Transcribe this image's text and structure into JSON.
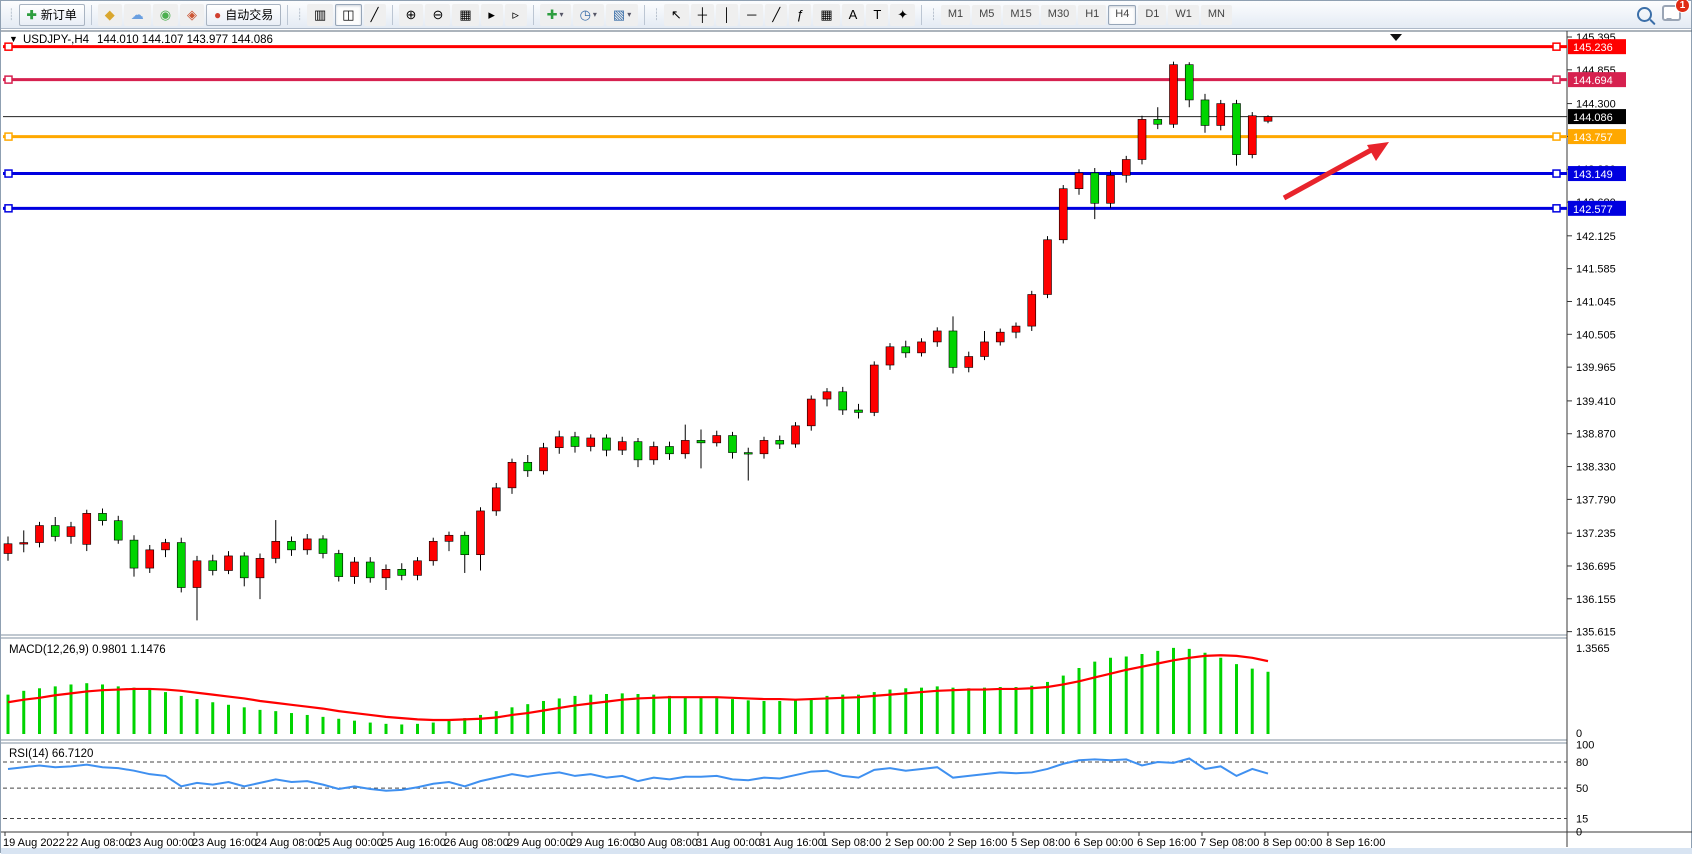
{
  "toolbar": {
    "new_order_label": "新订单",
    "autotrade_label": "自动交易",
    "account_icons": [
      {
        "name": "wallet-icon",
        "glyph": "◆",
        "color": "#d9a62e"
      },
      {
        "name": "community-icon",
        "glyph": "☁",
        "color": "#6a9fe0"
      },
      {
        "name": "signals-icon",
        "glyph": "◉",
        "color": "#4caf50"
      },
      {
        "name": "market-icon",
        "glyph": "◈",
        "color": "#cc5533"
      }
    ],
    "chart_type_buttons": [
      {
        "name": "bar-chart-button",
        "glyph": "▥",
        "press<!---->ed": false
      },
      {
        "name": "candlestick-button",
        "glyph": "◫",
        "pressed": true
      },
      {
        "name": "line-chart-button",
        "glyph": "╱",
        "pressed": false
      }
    ],
    "zoom_buttons": [
      {
        "name": "zoom-in-button",
        "glyph": "⊕"
      },
      {
        "name": "zoom-out-button",
        "glyph": "⊖"
      }
    ],
    "window_buttons": [
      {
        "name": "tile-windows-button",
        "glyph": "▦"
      },
      {
        "name": "autoscroll-button",
        "glyph": "▸"
      },
      {
        "name": "chart-shift-button",
        "glyph": "▹"
      }
    ],
    "dropdown_buttons": [
      {
        "name": "indicators-button",
        "glyph": "✚",
        "color": "#2e9e3f"
      },
      {
        "name": "periods-button",
        "glyph": "◷",
        "color": "#3a6ea8"
      },
      {
        "name": "templates-button",
        "glyph": "▧",
        "color": "#3a6ea8"
      }
    ],
    "draw_buttons": [
      {
        "name": "cursor-button",
        "glyph": "↖"
      },
      {
        "name": "crosshair-button",
        "glyph": "┼"
      },
      {
        "name": "vertical-line-button",
        "glyph": "│"
      },
      {
        "name": "horizontal-line-button",
        "glyph": "─"
      },
      {
        "name": "trendline-button",
        "glyph": "╱"
      },
      {
        "name": "fibonacci-button",
        "glyph": "ƒ"
      },
      {
        "name": "grid-button",
        "glyph": "▦"
      },
      {
        "name": "text-button",
        "glyph": "A"
      },
      {
        "name": "label-button",
        "glyph": "T"
      },
      {
        "name": "shapes-button",
        "glyph": "✦"
      }
    ],
    "timeframes": [
      "M1",
      "M5",
      "M15",
      "M30",
      "H1",
      "H4",
      "D1",
      "W1",
      "MN"
    ],
    "active_timeframe": "H4",
    "chat_badge": "1"
  },
  "chart": {
    "marker": "▼",
    "symbol_title": "USDJPY-,H4",
    "ohlc_display": "144.010 144.107 143.977 144.086"
  },
  "indicators": {
    "macd_label": "MACD(12,26,9) 0.9801 1.1476",
    "macd_scale_max": "1.3565",
    "macd_scale_min": "0",
    "rsi_label": "RSI(14) 66.7120",
    "rsi_level_labels": [
      "100",
      "80",
      "50",
      "15",
      "0"
    ]
  },
  "price_axis": {
    "ticks": [
      "145.395",
      "144.855",
      "144.300",
      "143.760",
      "143.220",
      "142.680",
      "142.125",
      "141.585",
      "141.045",
      "140.505",
      "139.965",
      "139.410",
      "138.870",
      "138.330",
      "137.790",
      "137.235",
      "136.695",
      "136.155",
      "135.615"
    ]
  },
  "time_axis": {
    "labels": [
      "19 Aug 2022",
      "22 Aug 08:00",
      "23 Aug 00:00",
      "23 Aug 16:00",
      "24 Aug 08:00",
      "25 Aug 00:00",
      "25 Aug 16:00",
      "26 Aug 08:00",
      "29 Aug 00:00",
      "29 Aug 16:00",
      "30 Aug 08:00",
      "31 Aug 00:00",
      "31 Aug 16:00",
      "1 Sep 08:00",
      "2 Sep 00:00",
      "2 Sep 16:00",
      "5 Sep 08:00",
      "6 Sep 00:00",
      "6 Sep 16:00",
      "7 Sep 08:00",
      "8 Sep 00:00",
      "8 Sep 16:00"
    ]
  },
  "chart_data": {
    "type": "candlestick",
    "symbol": "USDJPY",
    "period": "H4",
    "up_color": "#fe0000",
    "down_color": "#00d400",
    "current": {
      "open": 144.01,
      "high": 144.107,
      "low": 143.977,
      "close": 144.086
    },
    "price_lines": [
      {
        "price": 145.236,
        "label": "145.236",
        "color": "#ff0000"
      },
      {
        "price": 144.694,
        "label": "144.694",
        "color": "#d6214f"
      },
      {
        "price": 143.757,
        "label": "143.757",
        "color": "#ffa800"
      },
      {
        "price": 143.149,
        "label": "143.149",
        "color": "#0000e0"
      },
      {
        "price": 142.577,
        "label": "142.577",
        "color": "#0000e0"
      }
    ],
    "current_price_line": {
      "price": 144.086,
      "label": "144.086",
      "color": "#000000"
    },
    "annotation_arrow": {
      "color": "#e8242c"
    },
    "candles": [
      [
        136.9,
        137.18,
        136.78,
        137.06
      ],
      [
        137.06,
        137.28,
        136.92,
        137.08
      ],
      [
        137.08,
        137.42,
        137.0,
        137.36
      ],
      [
        137.36,
        137.5,
        137.1,
        137.18
      ],
      [
        137.18,
        137.42,
        137.06,
        137.34
      ],
      [
        137.05,
        137.62,
        136.94,
        137.56
      ],
      [
        137.56,
        137.64,
        137.36,
        137.44
      ],
      [
        137.44,
        137.52,
        137.06,
        137.12
      ],
      [
        137.12,
        137.2,
        136.52,
        136.66
      ],
      [
        136.66,
        137.04,
        136.58,
        136.96
      ],
      [
        136.96,
        137.14,
        136.84,
        137.08
      ],
      [
        137.08,
        137.16,
        136.26,
        136.34
      ],
      [
        136.34,
        136.86,
        135.8,
        136.78
      ],
      [
        136.78,
        136.88,
        136.54,
        136.62
      ],
      [
        136.62,
        136.94,
        136.56,
        136.86
      ],
      [
        136.86,
        136.92,
        136.36,
        136.5
      ],
      [
        136.5,
        136.9,
        136.15,
        136.82
      ],
      [
        136.82,
        137.45,
        136.74,
        137.1
      ],
      [
        137.1,
        137.18,
        136.86,
        136.96
      ],
      [
        136.96,
        137.22,
        136.88,
        137.14
      ],
      [
        137.14,
        137.2,
        136.82,
        136.9
      ],
      [
        136.9,
        136.96,
        136.44,
        136.52
      ],
      [
        136.52,
        136.84,
        136.4,
        136.76
      ],
      [
        136.76,
        136.84,
        136.42,
        136.5
      ],
      [
        136.5,
        136.72,
        136.3,
        136.64
      ],
      [
        136.64,
        136.74,
        136.46,
        136.54
      ],
      [
        136.54,
        136.84,
        136.46,
        136.78
      ],
      [
        136.78,
        137.16,
        136.7,
        137.1
      ],
      [
        137.1,
        137.26,
        136.94,
        137.2
      ],
      [
        137.2,
        137.26,
        136.58,
        136.88
      ],
      [
        136.88,
        137.66,
        136.62,
        137.6
      ],
      [
        137.6,
        138.06,
        137.52,
        137.98
      ],
      [
        137.98,
        138.46,
        137.88,
        138.4
      ],
      [
        138.4,
        138.52,
        138.16,
        138.26
      ],
      [
        138.26,
        138.72,
        138.2,
        138.64
      ],
      [
        138.64,
        138.92,
        138.54,
        138.82
      ],
      [
        138.82,
        138.9,
        138.56,
        138.66
      ],
      [
        138.66,
        138.86,
        138.58,
        138.8
      ],
      [
        138.8,
        138.86,
        138.5,
        138.6
      ],
      [
        138.6,
        138.82,
        138.52,
        138.74
      ],
      [
        138.74,
        138.8,
        138.32,
        138.44
      ],
      [
        138.44,
        138.74,
        138.36,
        138.66
      ],
      [
        138.66,
        138.74,
        138.44,
        138.54
      ],
      [
        138.54,
        139.02,
        138.46,
        138.76
      ],
      [
        138.76,
        138.94,
        138.3,
        138.72
      ],
      [
        138.72,
        138.92,
        138.66,
        138.84
      ],
      [
        138.84,
        138.9,
        138.46,
        138.56
      ],
      [
        138.56,
        138.64,
        138.1,
        138.54
      ],
      [
        138.54,
        138.82,
        138.46,
        138.76
      ],
      [
        138.76,
        138.84,
        138.62,
        138.7
      ],
      [
        138.7,
        139.06,
        138.64,
        139.0
      ],
      [
        139.0,
        139.5,
        138.92,
        139.44
      ],
      [
        139.44,
        139.62,
        139.32,
        139.56
      ],
      [
        139.56,
        139.64,
        139.18,
        139.26
      ],
      [
        139.26,
        139.36,
        139.12,
        139.22
      ],
      [
        139.22,
        140.06,
        139.16,
        140.0
      ],
      [
        140.0,
        140.36,
        139.92,
        140.3
      ],
      [
        140.3,
        140.4,
        140.12,
        140.2
      ],
      [
        140.2,
        140.44,
        140.14,
        140.38
      ],
      [
        140.38,
        140.62,
        140.3,
        140.56
      ],
      [
        140.56,
        140.8,
        139.86,
        139.96
      ],
      [
        139.96,
        140.22,
        139.88,
        140.14
      ],
      [
        140.14,
        140.56,
        140.08,
        140.38
      ],
      [
        140.38,
        140.6,
        140.32,
        140.54
      ],
      [
        140.54,
        140.7,
        140.44,
        140.64
      ],
      [
        140.64,
        141.22,
        140.56,
        141.16
      ],
      [
        141.16,
        142.12,
        141.1,
        142.06
      ],
      [
        142.06,
        142.96,
        142.0,
        142.9
      ],
      [
        142.9,
        143.22,
        142.8,
        143.16
      ],
      [
        143.16,
        143.24,
        142.4,
        142.66
      ],
      [
        142.66,
        143.2,
        142.58,
        143.12
      ],
      [
        143.12,
        143.44,
        143.0,
        143.38
      ],
      [
        143.38,
        144.1,
        143.3,
        144.04
      ],
      [
        144.04,
        144.24,
        143.88,
        143.96
      ],
      [
        143.96,
        144.99,
        143.9,
        144.94
      ],
      [
        144.94,
        144.98,
        144.24,
        144.36
      ],
      [
        144.36,
        144.46,
        143.82,
        143.94
      ],
      [
        143.94,
        144.36,
        143.86,
        144.3
      ],
      [
        144.3,
        144.36,
        143.28,
        143.46
      ],
      [
        143.46,
        144.16,
        143.4,
        144.1
      ],
      [
        144.01,
        144.107,
        143.977,
        144.086
      ]
    ],
    "macd": {
      "params": "12,26,9",
      "scale_max": 1.3565,
      "histogram": [
        0.62,
        0.68,
        0.72,
        0.75,
        0.78,
        0.8,
        0.78,
        0.75,
        0.73,
        0.7,
        0.66,
        0.6,
        0.55,
        0.5,
        0.46,
        0.42,
        0.38,
        0.36,
        0.33,
        0.3,
        0.27,
        0.24,
        0.21,
        0.18,
        0.16,
        0.15,
        0.16,
        0.18,
        0.21,
        0.25,
        0.3,
        0.36,
        0.42,
        0.47,
        0.52,
        0.56,
        0.6,
        0.62,
        0.63,
        0.64,
        0.63,
        0.62,
        0.6,
        0.59,
        0.58,
        0.57,
        0.55,
        0.53,
        0.52,
        0.52,
        0.53,
        0.56,
        0.6,
        0.62,
        0.62,
        0.66,
        0.7,
        0.72,
        0.73,
        0.75,
        0.73,
        0.72,
        0.73,
        0.74,
        0.74,
        0.76,
        0.82,
        0.92,
        1.04,
        1.14,
        1.2,
        1.22,
        1.26,
        1.31,
        1.3565,
        1.34,
        1.28,
        1.2,
        1.1,
        1.03,
        0.9801
      ],
      "signal": [
        0.5,
        0.54,
        0.57,
        0.61,
        0.64,
        0.67,
        0.69,
        0.7,
        0.71,
        0.71,
        0.7,
        0.68,
        0.65,
        0.62,
        0.59,
        0.56,
        0.52,
        0.49,
        0.46,
        0.43,
        0.4,
        0.36,
        0.33,
        0.3,
        0.27,
        0.25,
        0.23,
        0.22,
        0.22,
        0.23,
        0.24,
        0.26,
        0.3,
        0.33,
        0.37,
        0.41,
        0.45,
        0.48,
        0.51,
        0.54,
        0.56,
        0.57,
        0.58,
        0.58,
        0.58,
        0.58,
        0.57,
        0.56,
        0.55,
        0.55,
        0.54,
        0.55,
        0.56,
        0.57,
        0.58,
        0.6,
        0.62,
        0.64,
        0.66,
        0.68,
        0.69,
        0.7,
        0.7,
        0.71,
        0.71,
        0.72,
        0.74,
        0.78,
        0.83,
        0.89,
        0.95,
        1.01,
        1.06,
        1.11,
        1.16,
        1.2,
        1.23,
        1.24,
        1.23,
        1.2,
        1.1476
      ]
    },
    "rsi": {
      "period": 14,
      "current": 66.712,
      "levels": [
        80,
        50,
        15
      ],
      "values": [
        72,
        74,
        76,
        74,
        75,
        77,
        74,
        73,
        70,
        66,
        64,
        52,
        56,
        54,
        57,
        52,
        56,
        60,
        57,
        58,
        54,
        49,
        52,
        49,
        47,
        48,
        51,
        55,
        57,
        52,
        58,
        62,
        66,
        63,
        66,
        68,
        64,
        66,
        62,
        64,
        58,
        62,
        60,
        63,
        63,
        64,
        60,
        59,
        62,
        61,
        65,
        69,
        70,
        64,
        62,
        71,
        73,
        70,
        72,
        74,
        62,
        64,
        66,
        68,
        67,
        68,
        72,
        78,
        82,
        83,
        82,
        83,
        76,
        80,
        79,
        84,
        72,
        75,
        64,
        72,
        66.71
      ]
    }
  }
}
